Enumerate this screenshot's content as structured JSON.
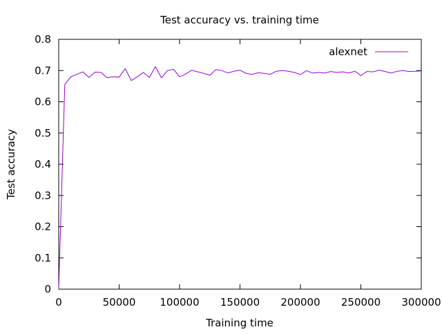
{
  "chart_data": {
    "type": "line",
    "title": "Test accuracy vs. training time",
    "xlabel": "Training time",
    "ylabel": "Test accuracy",
    "xlim": [
      0,
      300000
    ],
    "ylim": [
      0,
      0.8
    ],
    "xticks": [
      0,
      50000,
      100000,
      150000,
      200000,
      250000,
      300000
    ],
    "xtick_labels": [
      "0",
      "50000",
      "100000",
      "150000",
      "200000",
      "250000",
      "300000"
    ],
    "yticks": [
      0,
      0.1,
      0.2,
      0.3,
      0.4,
      0.5,
      0.6,
      0.7,
      0.8
    ],
    "ytick_labels": [
      "0",
      "0.1",
      "0.2",
      "0.3",
      "0.4",
      "0.5",
      "0.6",
      "0.7",
      "0.8"
    ],
    "grid": false,
    "legend_position": "top-right",
    "series": [
      {
        "name": "alexnet",
        "color": "#9400d3",
        "x": [
          0,
          5000,
          10000,
          15000,
          20000,
          25000,
          30000,
          35000,
          40000,
          45000,
          50000,
          55000,
          60000,
          65000,
          70000,
          75000,
          80000,
          85000,
          90000,
          95000,
          100000,
          105000,
          110000,
          115000,
          120000,
          125000,
          130000,
          135000,
          140000,
          145000,
          150000,
          155000,
          160000,
          165000,
          170000,
          175000,
          180000,
          185000,
          190000,
          195000,
          200000,
          205000,
          210000,
          215000,
          220000,
          225000,
          230000,
          235000,
          240000,
          245000,
          250000,
          255000,
          260000,
          265000,
          270000,
          275000,
          280000,
          285000,
          290000,
          295000,
          300000
        ],
        "y": [
          0.0,
          0.655,
          0.68,
          0.688,
          0.696,
          0.678,
          0.695,
          0.694,
          0.677,
          0.68,
          0.679,
          0.706,
          0.668,
          0.68,
          0.694,
          0.678,
          0.713,
          0.677,
          0.7,
          0.704,
          0.68,
          0.689,
          0.701,
          0.696,
          0.691,
          0.685,
          0.703,
          0.7,
          0.692,
          0.698,
          0.701,
          0.691,
          0.688,
          0.693,
          0.691,
          0.688,
          0.698,
          0.7,
          0.698,
          0.694,
          0.687,
          0.7,
          0.692,
          0.694,
          0.692,
          0.697,
          0.694,
          0.696,
          0.692,
          0.698,
          0.684,
          0.697,
          0.696,
          0.701,
          0.697,
          0.692,
          0.698,
          0.7,
          0.697,
          0.698,
          0.699
        ]
      }
    ]
  }
}
